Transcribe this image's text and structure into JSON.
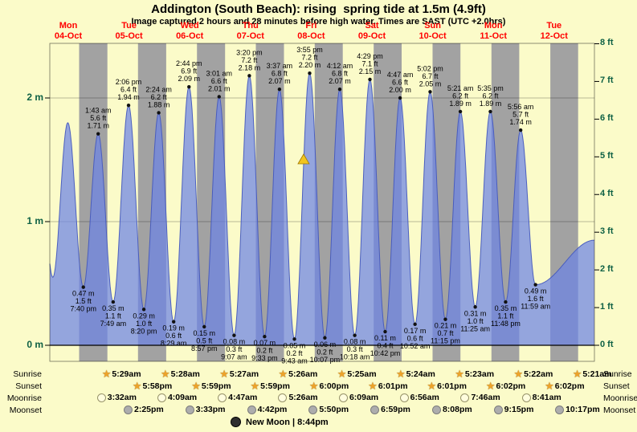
{
  "title": "Addington (South Beach): rising  spring tide at 1.5m (4.9ft)",
  "subtitle": "Image captured 2 hours and 28 minutes before high water. Times are SAST (UTC +2.0hrs)",
  "days": [
    {
      "name": "Mon",
      "date": "04-Oct"
    },
    {
      "name": "Tue",
      "date": "05-Oct"
    },
    {
      "name": "Wed",
      "date": "06-Oct"
    },
    {
      "name": "Thu",
      "date": "07-Oct"
    },
    {
      "name": "Fri",
      "date": "08-Oct"
    },
    {
      "name": "Sat",
      "date": "09-Oct"
    },
    {
      "name": "Sun",
      "date": "10-Oct"
    },
    {
      "name": "Mon",
      "date": "11-Oct"
    },
    {
      "name": "Tue",
      "date": "12-Oct"
    }
  ],
  "colors": {
    "background": "#FBFBC9",
    "night_band": "#A2A2A2",
    "tide_fill": "rgba(108,132,228,0.72)",
    "tide_stroke": "rgba(70,90,190,0.95)",
    "date_color": "#FF0000",
    "axis_label_color": "#0E6044",
    "marker_fill": "#F2C51F",
    "marker_stroke": "#A07800",
    "label_color": "#000000"
  },
  "chart_data": {
    "type": "area",
    "x_unit": "hours since Mon 04-Oct 00:00 SAST",
    "x_range": [
      -18,
      204
    ],
    "y_unit": "metres",
    "ylim_m": [
      0,
      2.44
    ],
    "y_axis_left": [
      {
        "label": "2 m",
        "m": 2
      },
      {
        "label": "1 m",
        "m": 1
      },
      {
        "label": "0 m",
        "m": 0
      }
    ],
    "y_axis_right": [
      {
        "label": "8 ft",
        "ft": 8
      },
      {
        "label": "7 ft",
        "ft": 7
      },
      {
        "label": "6 ft",
        "ft": 6
      },
      {
        "label": "5 ft",
        "ft": 5
      },
      {
        "label": "4 ft",
        "ft": 4
      },
      {
        "label": "3 ft",
        "ft": 3
      },
      {
        "label": "2 ft",
        "ft": 2
      },
      {
        "label": "1 ft",
        "ft": 1
      },
      {
        "label": "0 ft",
        "ft": 0
      }
    ],
    "night_bands": [
      [
        -6.033,
        5.483
      ],
      [
        17.967,
        29.467
      ],
      [
        41.983,
        53.45
      ],
      [
        65.983,
        77.433
      ],
      [
        90.0,
        101.417
      ],
      [
        114.017,
        125.4
      ],
      [
        138.017,
        149.383
      ],
      [
        162.033,
        173.367
      ],
      [
        186.033,
        197.35
      ]
    ],
    "current_level_marker": {
      "t": 85.45,
      "m": 1.5
    },
    "events": [
      {
        "t": -23.0,
        "type": "high",
        "m": 1.7,
        "labeled": false
      },
      {
        "t": -16.75,
        "type": "low",
        "m": 0.55,
        "labeled": false
      },
      {
        "t": -10.67,
        "type": "high",
        "m": 1.8,
        "labeled": false
      },
      {
        "t": -4.333,
        "type": "low",
        "m": 0.47,
        "ft": 1.5,
        "time": "7:40 pm"
      },
      {
        "t": 1.717,
        "type": "high",
        "m": 1.71,
        "ft": 5.6,
        "time": "1:43 am"
      },
      {
        "t": 7.817,
        "type": "low",
        "m": 0.35,
        "ft": 1.1,
        "time": "7:49 am"
      },
      {
        "t": 14.1,
        "type": "high",
        "m": 1.94,
        "ft": 6.4,
        "time": "2:06 pm"
      },
      {
        "t": 20.333,
        "type": "low",
        "m": 0.29,
        "ft": 1.0,
        "time": "8:20 pm"
      },
      {
        "t": 26.4,
        "type": "high",
        "m": 1.88,
        "ft": 6.2,
        "time": "2:24 am"
      },
      {
        "t": 32.483,
        "type": "low",
        "m": 0.19,
        "ft": 0.6,
        "time": "8:29 am"
      },
      {
        "t": 38.733,
        "type": "high",
        "m": 2.09,
        "ft": 6.9,
        "time": "2:44 pm"
      },
      {
        "t": 44.95,
        "type": "low",
        "m": 0.15,
        "ft": 0.5,
        "time": "8:57 pm"
      },
      {
        "t": 51.017,
        "type": "high",
        "m": 2.01,
        "ft": 6.6,
        "time": "3:01 am"
      },
      {
        "t": 57.117,
        "type": "low",
        "m": 0.08,
        "ft": 0.3,
        "time": "9:07 am"
      },
      {
        "t": 63.333,
        "type": "high",
        "m": 2.18,
        "ft": 7.2,
        "time": "3:20 pm"
      },
      {
        "t": 69.55,
        "type": "low",
        "m": 0.07,
        "ft": 0.2,
        "time": "9:33 pm"
      },
      {
        "t": 75.617,
        "type": "high",
        "m": 2.07,
        "ft": 6.8,
        "time": "3:37 am"
      },
      {
        "t": 81.717,
        "type": "low",
        "m": 0.05,
        "ft": 0.2,
        "time": "9:43 am"
      },
      {
        "t": 87.917,
        "type": "high",
        "m": 2.2,
        "ft": 7.2,
        "time": "3:55 pm"
      },
      {
        "t": 94.117,
        "type": "low",
        "m": 0.06,
        "ft": 0.2,
        "time": "10:07 pm"
      },
      {
        "t": 100.2,
        "type": "high",
        "m": 2.07,
        "ft": 6.8,
        "time": "4:12 am"
      },
      {
        "t": 106.3,
        "type": "low",
        "m": 0.08,
        "ft": 0.3,
        "time": "10:18 am"
      },
      {
        "t": 112.483,
        "type": "high",
        "m": 2.15,
        "ft": 7.1,
        "time": "4:29 pm"
      },
      {
        "t": 118.7,
        "type": "low",
        "m": 0.11,
        "ft": 0.4,
        "time": "10:42 pm"
      },
      {
        "t": 124.783,
        "type": "high",
        "m": 2.0,
        "ft": 6.6,
        "time": "4:47 am"
      },
      {
        "t": 130.867,
        "type": "low",
        "m": 0.17,
        "ft": 0.6,
        "time": "10:52 am"
      },
      {
        "t": 137.033,
        "type": "high",
        "m": 2.05,
        "ft": 6.7,
        "time": "5:02 pm"
      },
      {
        "t": 143.25,
        "type": "low",
        "m": 0.21,
        "ft": 0.7,
        "time": "11:15 pm"
      },
      {
        "t": 149.35,
        "type": "high",
        "m": 1.89,
        "ft": 6.2,
        "time": "5:21 am"
      },
      {
        "t": 155.417,
        "type": "low",
        "m": 0.31,
        "ft": 1.0,
        "time": "11:25 am"
      },
      {
        "t": 161.583,
        "type": "high",
        "m": 1.89,
        "ft": 6.2,
        "time": "5:35 pm"
      },
      {
        "t": 167.8,
        "type": "low",
        "m": 0.35,
        "ft": 1.1,
        "time": "11:48 pm"
      },
      {
        "t": 173.933,
        "type": "high",
        "m": 1.74,
        "ft": 5.7,
        "time": "5:56 am"
      },
      {
        "t": 179.983,
        "type": "low",
        "m": 0.49,
        "ft": 1.6,
        "time": "11:59 am"
      },
      {
        "t": 204.0,
        "type": "high",
        "m": 0.85,
        "labeled": false
      }
    ]
  },
  "rows": {
    "sunrise": {
      "label": "Sunrise",
      "entries": [
        {
          "time": "5:29am",
          "t": 5.483
        },
        {
          "time": "5:28am",
          "t": 29.467
        },
        {
          "time": "5:27am",
          "t": 53.45
        },
        {
          "time": "5:26am",
          "t": 77.433
        },
        {
          "time": "5:25am",
          "t": 101.417
        },
        {
          "time": "5:24am",
          "t": 125.4
        },
        {
          "time": "5:23am",
          "t": 149.383
        },
        {
          "time": "5:22am",
          "t": 173.367
        },
        {
          "time": "5:21am",
          "t": 197.35
        }
      ]
    },
    "sunset": {
      "label": "Sunset",
      "entries": [
        {
          "time": "5:58pm",
          "t": 17.967
        },
        {
          "time": "5:59pm",
          "t": 41.983
        },
        {
          "time": "5:59pm",
          "t": 65.983
        },
        {
          "time": "6:00pm",
          "t": 90.0
        },
        {
          "time": "6:01pm",
          "t": 114.017
        },
        {
          "time": "6:01pm",
          "t": 138.017
        },
        {
          "time": "6:02pm",
          "t": 162.033
        },
        {
          "time": "6:02pm",
          "t": 186.033
        }
      ]
    },
    "moonrise": {
      "label": "Moonrise",
      "entries": [
        {
          "time": "3:32am",
          "t": 3.533
        },
        {
          "time": "4:09am",
          "t": 28.15
        },
        {
          "time": "4:47am",
          "t": 52.783
        },
        {
          "time": "5:26am",
          "t": 77.433
        },
        {
          "time": "6:09am",
          "t": 102.15
        },
        {
          "time": "6:56am",
          "t": 126.933
        },
        {
          "time": "7:46am",
          "t": 151.767
        },
        {
          "time": "8:41am",
          "t": 176.683
        }
      ]
    },
    "moonset": {
      "label": "Moonset",
      "entries": [
        {
          "time": "2:25pm",
          "t": 14.417
        },
        {
          "time": "3:33pm",
          "t": 39.55
        },
        {
          "time": "4:42pm",
          "t": 64.7
        },
        {
          "time": "5:50pm",
          "t": 89.833
        },
        {
          "time": "6:59pm",
          "t": 114.983
        },
        {
          "time": "8:08pm",
          "t": 140.133
        },
        {
          "time": "9:15pm",
          "t": 165.25
        },
        {
          "time": "10:17pm",
          "t": 190.283
        }
      ]
    }
  },
  "moon_phase": {
    "label": "New Moon | 8:44pm"
  }
}
